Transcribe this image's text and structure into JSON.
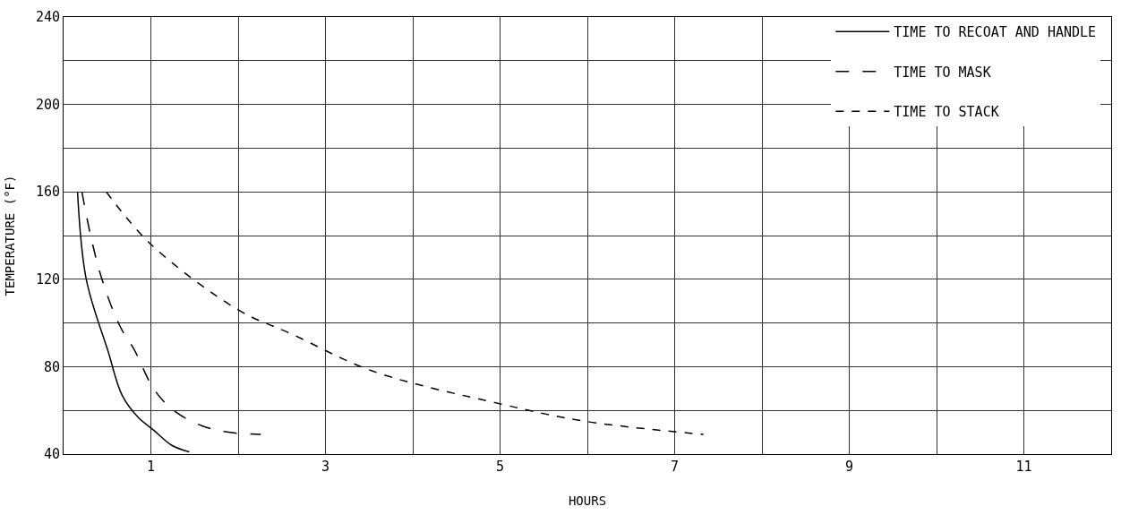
{
  "chart_data": {
    "type": "line",
    "xlabel": "HOURS",
    "ylabel": "TEMPERATURE (°F)",
    "xlim": [
      0,
      12
    ],
    "ylim": [
      40,
      240
    ],
    "xticks": [
      {
        "value": 0,
        "label": null
      },
      1,
      {
        "value": 2,
        "label": null
      },
      3,
      {
        "value": 4,
        "label": null
      },
      5,
      {
        "value": 6,
        "label": null
      },
      7,
      {
        "value": 8,
        "label": null
      },
      9,
      {
        "value": 10,
        "label": null
      },
      11,
      {
        "value": 12,
        "label": null
      }
    ],
    "yticks": [
      40,
      {
        "value": 60,
        "label": null
      },
      80,
      {
        "value": 100,
        "label": null
      },
      120,
      {
        "value": 140,
        "label": null
      },
      160,
      {
        "value": 180,
        "label": null
      },
      200,
      {
        "value": 220,
        "label": null
      },
      240
    ],
    "grid": true,
    "legend": "top right",
    "marker": "none",
    "series": [
      {
        "name": "TIME TO RECOAT AND HANDLE",
        "color": "#000000",
        "line_style": "solid",
        "x": [
          0.16,
          0.26,
          0.51,
          0.67,
          0.85,
          1.03,
          1.24,
          1.44
        ],
        "values": [
          160,
          120,
          87,
          67,
          57,
          51,
          44,
          41
        ]
      },
      {
        "name": "TIME TO MASK",
        "color": "#000000",
        "line_style": "dashed",
        "x": [
          0.21,
          0.31,
          0.44,
          0.64,
          0.82,
          1.03,
          1.26,
          1.58,
          1.89,
          2.26
        ],
        "values": [
          160,
          140,
          120,
          99,
          87,
          70,
          60,
          53,
          50,
          49
        ]
      },
      {
        "name": "TIME TO STACK",
        "color": "#000000",
        "line_style": "dotted",
        "x": [
          0.49,
          1.0,
          2.0,
          2.61,
          3.54,
          5.0,
          5.98,
          7.33
        ],
        "values": [
          160,
          136,
          106,
          95,
          78,
          63,
          55,
          49
        ]
      }
    ]
  }
}
